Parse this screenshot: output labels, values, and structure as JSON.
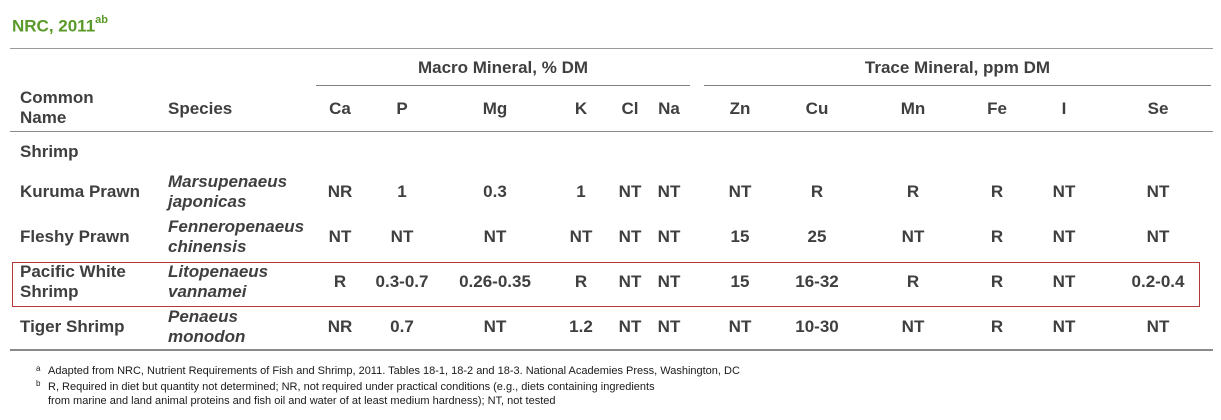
{
  "title": {
    "text": "NRC, 2011",
    "sup": "ab"
  },
  "groups": {
    "macro": "Macro Mineral, % DM",
    "trace": "Trace Mineral, ppm DM"
  },
  "headers": {
    "common_name": "Common Name",
    "species": "Species",
    "ca": "Ca",
    "p": "P",
    "mg": "Mg",
    "k": "K",
    "cl": "Cl",
    "na": "Na",
    "zn": "Zn",
    "cu": "Cu",
    "mn": "Mn",
    "fe": "Fe",
    "i": "I",
    "se": "Se"
  },
  "section_label": "Shrimp",
  "rows": [
    {
      "name": "Kuruma Prawn",
      "species": "Marsupenaeus japonicas",
      "ca": "NR",
      "p": "1",
      "mg": "0.3",
      "k": "1",
      "cl": "NT",
      "na": "NT",
      "zn": "NT",
      "cu": "R",
      "mn": "R",
      "fe": "R",
      "i": "NT",
      "se": "NT"
    },
    {
      "name": "Fleshy Prawn",
      "species": "Fenneropenaeus chinensis",
      "ca": "NT",
      "p": "NT",
      "mg": "NT",
      "k": "NT",
      "cl": "NT",
      "na": "NT",
      "zn": "15",
      "cu": "25",
      "mn": "NT",
      "fe": "R",
      "i": "NT",
      "se": "NT"
    },
    {
      "name": "Pacific White Shrimp",
      "species": "Litopenaeus vannamei",
      "ca": "R",
      "p": "0.3-0.7",
      "mg": "0.26-0.35",
      "k": "R",
      "cl": "NT",
      "na": "NT",
      "zn": "15",
      "cu": "16-32",
      "mn": "R",
      "fe": "R",
      "i": "NT",
      "se": "0.2-0.4",
      "highlighted": true
    },
    {
      "name": "Tiger Shrimp",
      "species": "Penaeus monodon",
      "ca": "NR",
      "p": "0.7",
      "mg": "NT",
      "k": "1.2",
      "cl": "NT",
      "na": "NT",
      "zn": "NT",
      "cu": "10-30",
      "mn": "NT",
      "fe": "R",
      "i": "NT",
      "se": "NT"
    }
  ],
  "footnotes": {
    "a_mark": "a",
    "a_text": "Adapted from NRC, Nutrient Requirements of Fish and Shrimp, 2011. Tables 18-1, 18-2 and 18-3. National Academies Press, Washington, DC",
    "b_mark": "b",
    "b_line1": "R, Required in diet but quantity not determined; NR, not required under practical conditions (e.g., diets containing ingredients",
    "b_line2": "from marine and land animal proteins and fish oil and water of at least medium hardness); NT, not tested"
  },
  "colors": {
    "title": "#5a9a2a",
    "highlight_border": "#b23a3a",
    "text": "#3f3f3f"
  }
}
